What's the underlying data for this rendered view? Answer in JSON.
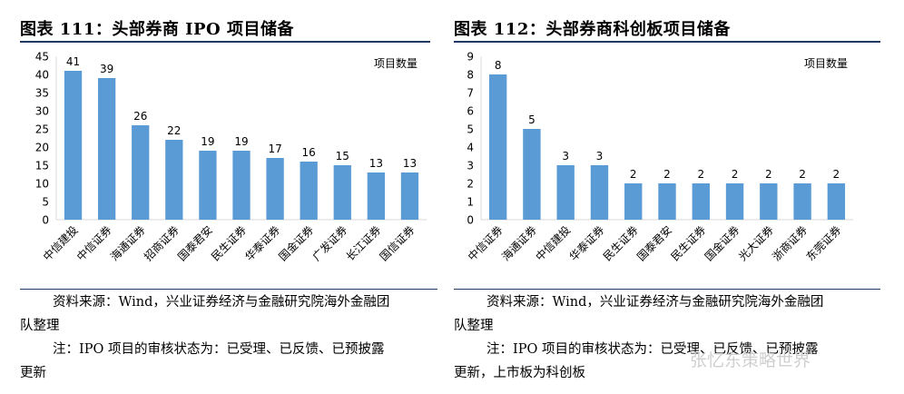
{
  "watermark": "张忆东策略世界",
  "panels": [
    {
      "title": "图表 111：头部券商 IPO 项目储备",
      "source_line1": "资料来源：Wind，兴业证券经济与金融研究院海外金融团",
      "source_line2": "队整理",
      "note_line1": "注：IPO 项目的审核状态为：已受理、已反馈、已预披露",
      "note_line2": "更新"
    },
    {
      "title": "图表 112：头部券商科创板项目储备",
      "source_line1": "资料来源：Wind，兴业证券经济与金融研究院海外金融团",
      "source_line2": "队整理",
      "note_line1": "注：IPO 项目的审核状态为：已受理、已反馈、已预披露",
      "note_line2": "更新，上市板为科创板"
    }
  ],
  "chart_data": [
    {
      "type": "bar",
      "categories": [
        "中信建投",
        "中信证券",
        "海通证券",
        "招商证券",
        "国泰君安",
        "民生证券",
        "华泰证券",
        "国金证券",
        "广发证券",
        "长江证券",
        "国信证券"
      ],
      "values": [
        41,
        39,
        26,
        22,
        19,
        19,
        17,
        16,
        15,
        13,
        13
      ],
      "title": "",
      "legend": "项目数量",
      "ylim": [
        0,
        45
      ],
      "yticks": [
        0,
        5,
        10,
        15,
        20,
        25,
        30,
        35,
        40,
        45
      ],
      "bar_color": "#5b9bd5",
      "grid": false
    },
    {
      "type": "bar",
      "categories": [
        "中信证券",
        "海通证券",
        "中信建投",
        "华泰证券",
        "民生证券",
        "国泰君安",
        "民生证券",
        "国金证券",
        "光大证券",
        "浙商证券",
        "东莞证券"
      ],
      "values": [
        8,
        5,
        3,
        3,
        2,
        2,
        2,
        2,
        2,
        2,
        2
      ],
      "title": "",
      "legend": "项目数量",
      "ylim": [
        0,
        9
      ],
      "yticks": [
        0,
        1,
        2,
        3,
        4,
        5,
        6,
        7,
        8,
        9
      ],
      "bar_color": "#5b9bd5",
      "grid": false
    }
  ]
}
